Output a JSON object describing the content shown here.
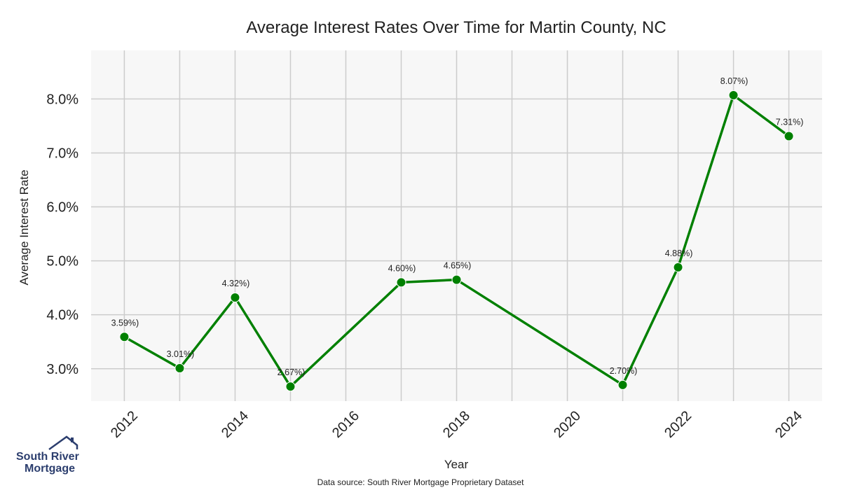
{
  "chart_data": {
    "type": "line",
    "title": "Average Interest Rates Over Time for Martin County, NC",
    "xlabel": "Year",
    "ylabel": "Average Interest Rate",
    "x_ticks": [
      "2012",
      "2014",
      "2016",
      "2018",
      "2020",
      "2022",
      "2024"
    ],
    "y_ticks": [
      "3.0%",
      "4.0%",
      "5.0%",
      "6.0%",
      "7.0%",
      "8.0%"
    ],
    "xlim": [
      2011.4,
      2024.6
    ],
    "ylim": [
      2.4,
      8.9
    ],
    "grid": true,
    "series": [
      {
        "x": [
          2012,
          2013,
          2014,
          2015,
          2017,
          2018,
          2021,
          2022,
          2023,
          2024
        ],
        "y": [
          3.59,
          3.01,
          4.32,
          2.67,
          4.6,
          4.65,
          2.7,
          4.88,
          8.07,
          7.31
        ],
        "labels": [
          "3.59%)",
          "3.01%)",
          "4.32%)",
          "2.67%)",
          "4.60%)",
          "4.65%)",
          "2.70%)",
          "4.88%)",
          "8.07%)",
          "7.31%)"
        ],
        "color": "#008000"
      }
    ]
  },
  "footer": {
    "source": "Data source: South River Mortgage Proprietary Dataset",
    "logo_line1": "South River",
    "logo_line2": "Mortgage"
  },
  "colors": {
    "plot_bg": "#f7f7f7",
    "grid": "#cccccc",
    "logo": "#2c3e6e"
  }
}
